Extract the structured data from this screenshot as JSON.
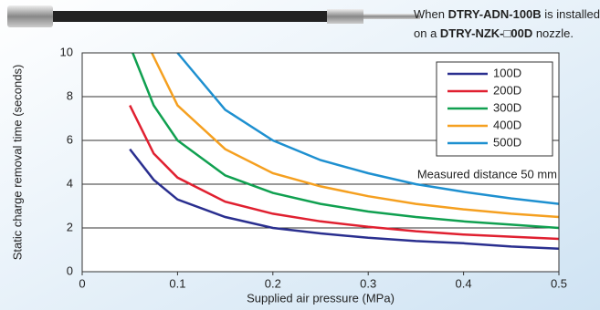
{
  "chart_data": {
    "type": "line",
    "note": {
      "line1": [
        "When ",
        "DTRY-ADN-100B",
        " is installed"
      ],
      "line2": [
        "on a ",
        "DTRY-NZK-",
        "□",
        "00D",
        " nozzle."
      ]
    },
    "annotation": "Measured distance 50 mm",
    "x_label": "Supplied air pressure (MPa)",
    "y_label": "Static charge removal time (seconds)",
    "xlim": [
      0,
      0.5
    ],
    "xticks": [
      0,
      0.1,
      0.2,
      0.3,
      0.4,
      0.5
    ],
    "ylim": [
      0,
      10
    ],
    "yticks": [
      0,
      2,
      4,
      6,
      8,
      10
    ],
    "grid": true,
    "legend": "upper right",
    "series": [
      {
        "name": "100D",
        "color": "#2a2f8f",
        "x": [
          0.05,
          0.075,
          0.1,
          0.15,
          0.2,
          0.25,
          0.3,
          0.35,
          0.4,
          0.45,
          0.5
        ],
        "values": [
          5.6,
          4.2,
          3.3,
          2.5,
          2.0,
          1.75,
          1.55,
          1.4,
          1.3,
          1.15,
          1.05
        ]
      },
      {
        "name": "200D",
        "color": "#e02030",
        "x": [
          0.05,
          0.075,
          0.1,
          0.15,
          0.2,
          0.25,
          0.3,
          0.35,
          0.4,
          0.45,
          0.5
        ],
        "values": [
          7.6,
          5.4,
          4.3,
          3.2,
          2.65,
          2.3,
          2.05,
          1.85,
          1.7,
          1.6,
          1.5
        ]
      },
      {
        "name": "300D",
        "color": "#10a050",
        "x": [
          0.053,
          0.075,
          0.1,
          0.15,
          0.2,
          0.25,
          0.3,
          0.35,
          0.4,
          0.45,
          0.5
        ],
        "values": [
          10,
          7.6,
          6.0,
          4.4,
          3.6,
          3.1,
          2.75,
          2.5,
          2.3,
          2.15,
          2.0
        ]
      },
      {
        "name": "400D",
        "color": "#f5a020",
        "x": [
          0.073,
          0.1,
          0.15,
          0.2,
          0.25,
          0.3,
          0.35,
          0.4,
          0.45,
          0.5
        ],
        "values": [
          10,
          7.6,
          5.6,
          4.5,
          3.9,
          3.45,
          3.1,
          2.85,
          2.65,
          2.5
        ]
      },
      {
        "name": "500D",
        "color": "#1e90d0",
        "x": [
          0.1,
          0.15,
          0.2,
          0.25,
          0.3,
          0.35,
          0.4,
          0.45,
          0.5
        ],
        "values": [
          10,
          7.4,
          6.0,
          5.1,
          4.5,
          4.0,
          3.65,
          3.35,
          3.1
        ]
      }
    ]
  }
}
